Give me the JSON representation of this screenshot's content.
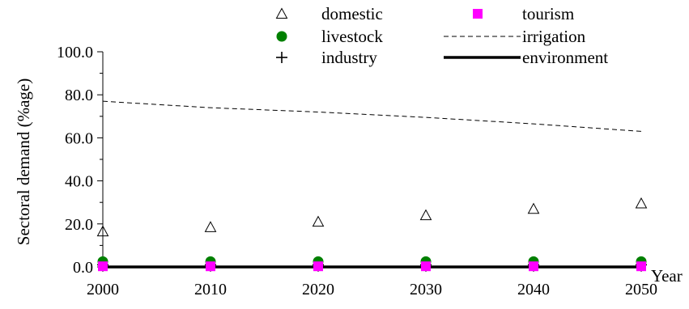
{
  "chart_data": {
    "type": "line",
    "ylabel": "Sectoral demand (%age)",
    "xlabel": "Year",
    "x": [
      2000,
      2010,
      2020,
      2030,
      2040,
      2050
    ],
    "xlim": [
      2000,
      2050
    ],
    "ylim": [
      0,
      100
    ],
    "x_tick_labels": [
      "2000",
      "2010",
      "2020",
      "2030",
      "2040",
      "2050"
    ],
    "y_tick_labels": [
      "0.0",
      "20.0",
      "40.0",
      "60.0",
      "80.0",
      "100.0"
    ],
    "y_ticks": [
      0,
      20,
      40,
      60,
      80,
      100
    ],
    "grid": false,
    "legend_position": "top",
    "series": [
      {
        "name": "domestic",
        "style": "triangle-marker",
        "color": "#000000",
        "values": [
          16.5,
          18.5,
          21.0,
          24.0,
          27.0,
          29.5
        ]
      },
      {
        "name": "tourism",
        "style": "square-marker",
        "color": "#ff00ff",
        "values": [
          0.3,
          0.3,
          0.3,
          0.3,
          0.3,
          0.3
        ]
      },
      {
        "name": "livestock",
        "style": "circle-marker",
        "color": "#008000",
        "values": [
          2.5,
          2.5,
          2.5,
          2.5,
          2.5,
          2.5
        ]
      },
      {
        "name": "irrigation",
        "style": "dashed-line",
        "color": "#000000",
        "values": [
          77.0,
          74.0,
          72.0,
          69.5,
          66.5,
          63.0
        ]
      },
      {
        "name": "industry",
        "style": "plus-marker",
        "color": "#000000",
        "values": [
          1.0,
          1.0,
          1.0,
          1.0,
          1.0,
          1.0
        ]
      },
      {
        "name": "environment",
        "style": "thick-line",
        "color": "#000000",
        "values": [
          0.0,
          0.0,
          0.0,
          0.0,
          0.0,
          0.0
        ]
      }
    ]
  }
}
